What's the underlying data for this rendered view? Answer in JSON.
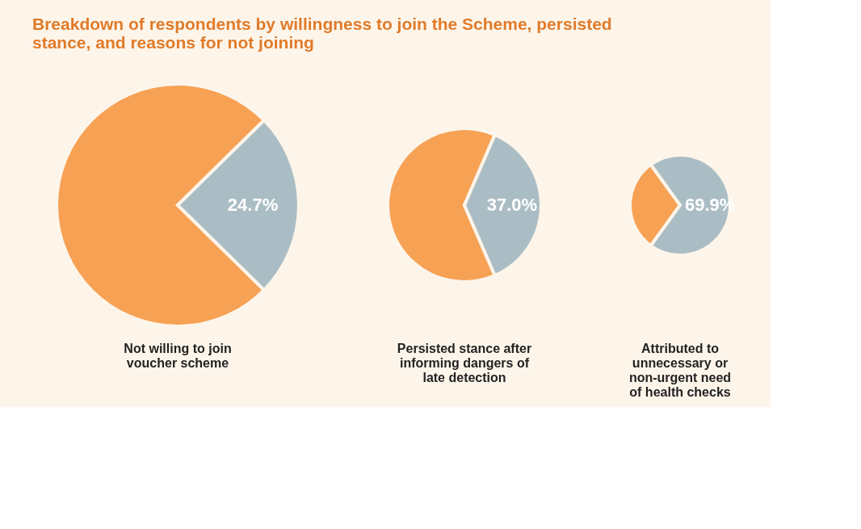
{
  "chart_data": [
    {
      "type": "pie",
      "title": "Breakdown of respondents by willingness to join the Scheme, persisted stance, and reasons for not joining",
      "categories": [
        null,
        null
      ],
      "values": [
        75.3,
        24.7
      ],
      "colors": [
        "#f7a155",
        "#abbdc4"
      ],
      "value_labels": [
        null,
        "24.7%"
      ],
      "annotations": [
        "Not willing to join voucher scheme"
      ]
    },
    {
      "type": "pie",
      "categories": [
        null,
        null
      ],
      "values": [
        63.0,
        37.0
      ],
      "colors": [
        "#f7a155",
        "#abbdc4"
      ],
      "value_labels": [
        null,
        "37.0%"
      ],
      "annotations": [
        "Persisted stance after informing dangers of late detection"
      ]
    },
    {
      "type": "pie",
      "categories": [
        null,
        null
      ],
      "values": [
        30.1,
        69.9
      ],
      "colors": [
        "#f7a155",
        "#abbdc4"
      ],
      "value_labels": [
        null,
        "69.9%"
      ],
      "annotations": [
        "Attributed to unnecessary or non-urgent need of health checks"
      ]
    }
  ]
}
